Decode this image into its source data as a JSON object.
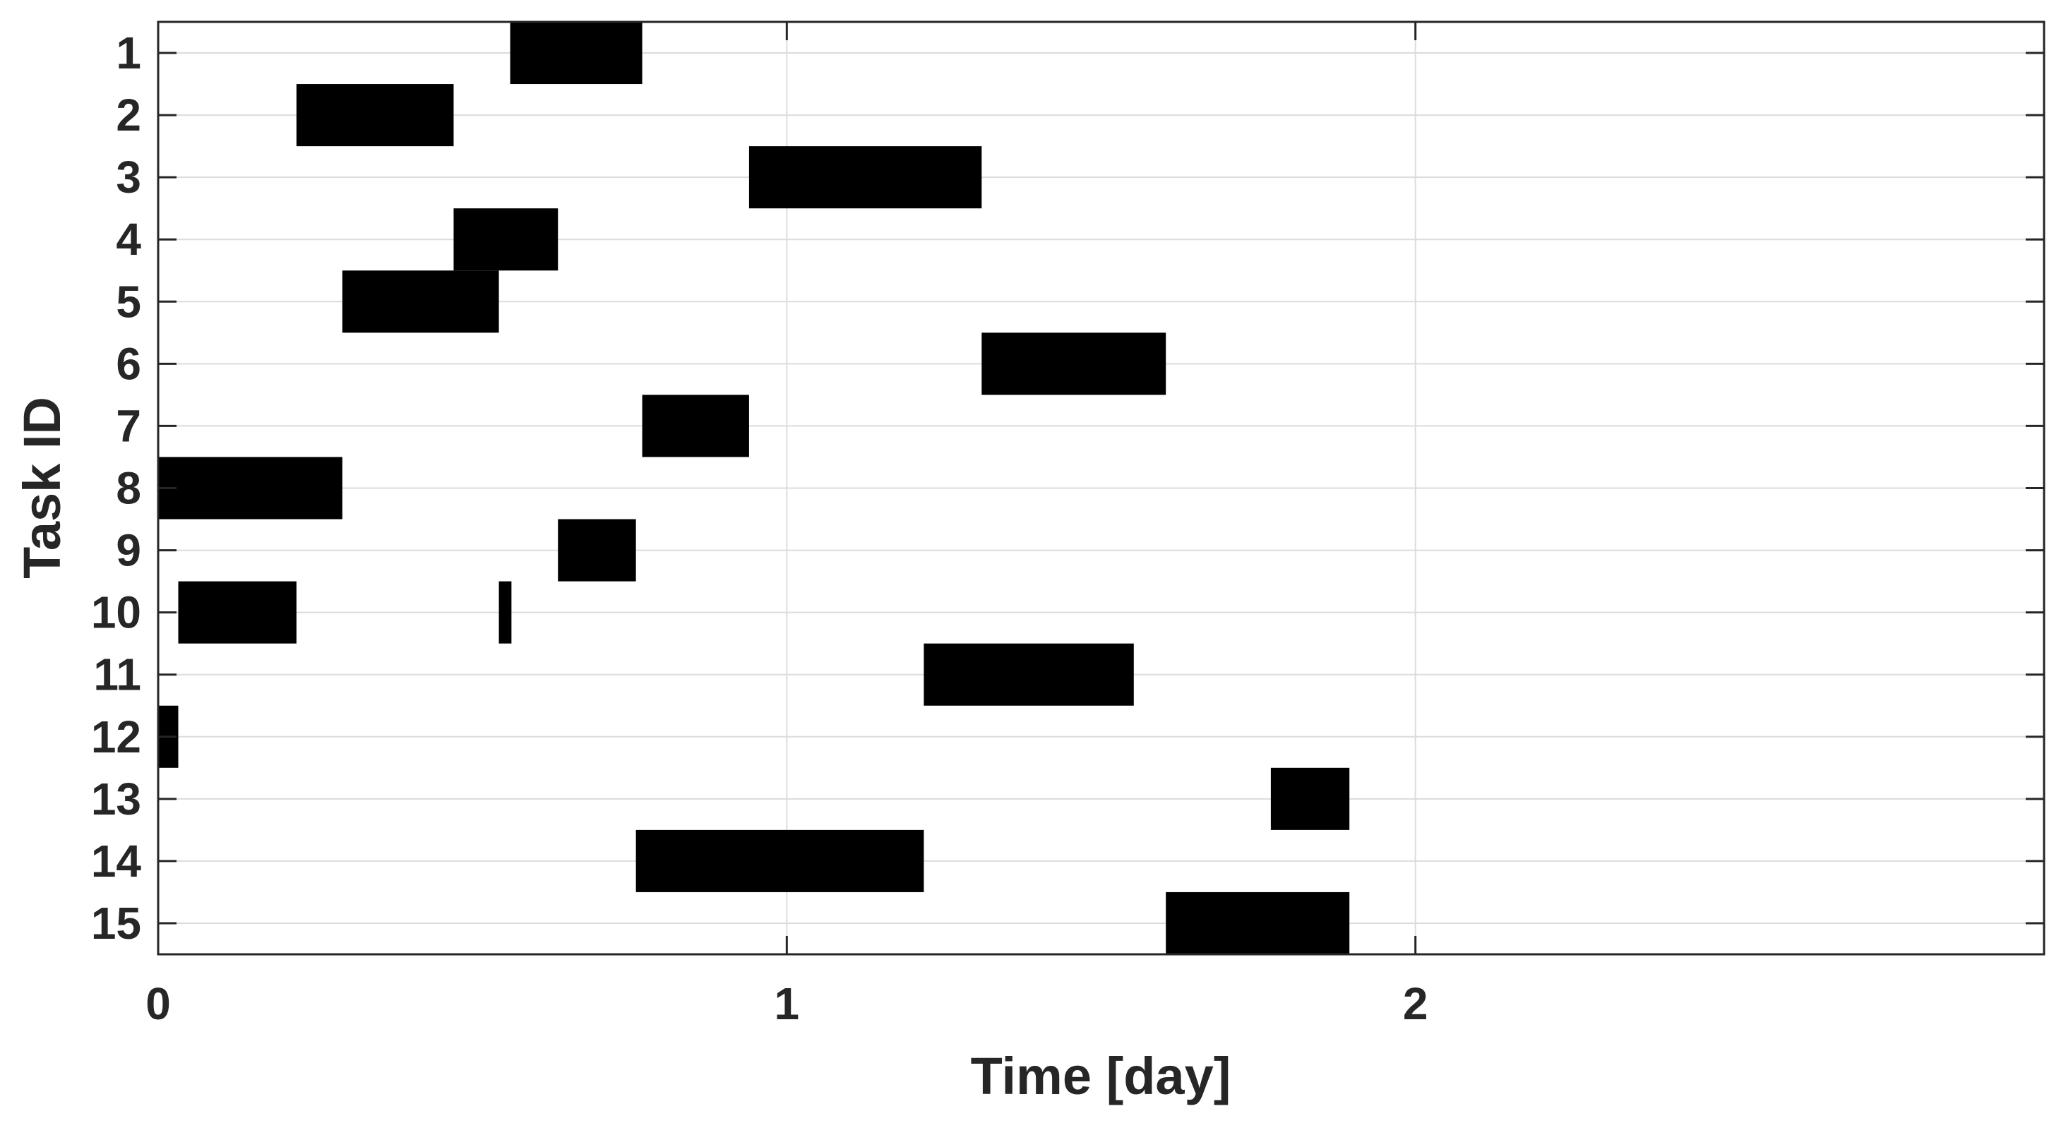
{
  "chart_data": {
    "type": "gantt",
    "title": "",
    "xlabel": "Time [day]",
    "ylabel": "Task ID",
    "xlim": [
      0,
      3
    ],
    "x_ticks": [
      "0",
      "1",
      "2"
    ],
    "x_tick_values": [
      0,
      1,
      2
    ],
    "y_ticks": [
      "1",
      "2",
      "3",
      "4",
      "5",
      "6",
      "7",
      "8",
      "9",
      "10",
      "11",
      "12",
      "13",
      "14",
      "15"
    ],
    "grid": true,
    "bar_color": "#000000",
    "grid_color": "#dcdcdc",
    "axis_color": "#262626",
    "tasks": [
      {
        "task": 1,
        "segments": [
          [
            0.56,
            0.77
          ]
        ]
      },
      {
        "task": 2,
        "segments": [
          [
            0.22,
            0.47
          ]
        ]
      },
      {
        "task": 3,
        "segments": [
          [
            0.94,
            1.31
          ]
        ]
      },
      {
        "task": 4,
        "segments": [
          [
            0.47,
            0.636
          ]
        ]
      },
      {
        "task": 5,
        "segments": [
          [
            0.293,
            0.542
          ]
        ]
      },
      {
        "task": 6,
        "segments": [
          [
            1.31,
            1.603
          ]
        ]
      },
      {
        "task": 7,
        "segments": [
          [
            0.77,
            0.94
          ]
        ]
      },
      {
        "task": 8,
        "segments": [
          [
            0.0,
            0.293
          ]
        ]
      },
      {
        "task": 9,
        "segments": [
          [
            0.636,
            0.76
          ]
        ]
      },
      {
        "task": 10,
        "segments": [
          [
            0.032,
            0.22
          ],
          [
            0.542,
            0.562
          ]
        ]
      },
      {
        "task": 11,
        "segments": [
          [
            1.218,
            1.552
          ]
        ]
      },
      {
        "task": 12,
        "segments": [
          [
            0.0,
            0.032
          ]
        ]
      },
      {
        "task": 13,
        "segments": [
          [
            1.77,
            1.895
          ]
        ]
      },
      {
        "task": 14,
        "segments": [
          [
            0.76,
            1.218
          ]
        ]
      },
      {
        "task": 15,
        "segments": [
          [
            1.603,
            1.895
          ]
        ]
      }
    ]
  }
}
